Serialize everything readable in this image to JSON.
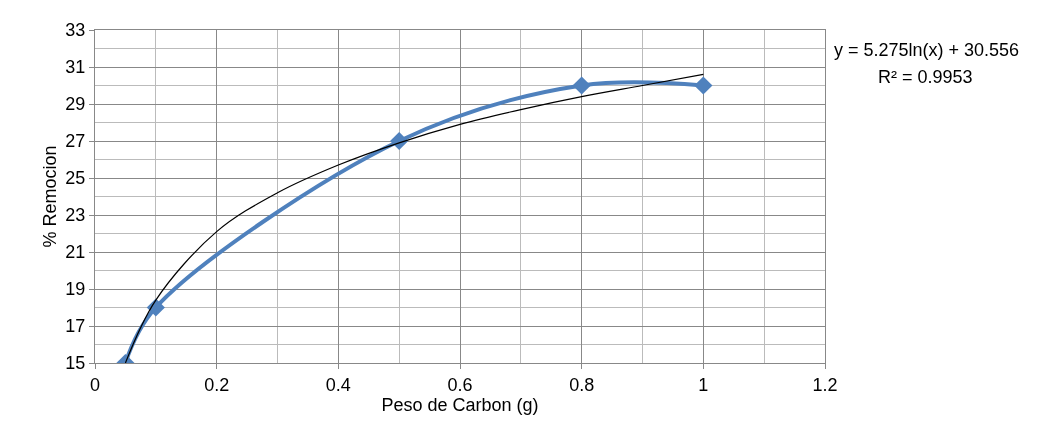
{
  "chart_data": {
    "type": "line",
    "xlabel": "Peso de Carbon (g)",
    "ylabel": "% Remocion",
    "x": [
      0.05,
      0.1,
      0.5,
      0.8,
      1
    ],
    "series": [
      {
        "color": "#4f81bd",
        "values": [
          15,
          18,
          27,
          30,
          30
        ],
        "marker": "diamond"
      },
      {
        "type": "line",
        "color": "#000000",
        "marker": "none",
        "x": [
          0.05,
          0.1,
          0.2,
          0.3,
          0.4,
          0.5,
          0.6,
          0.7,
          0.8,
          0.9,
          1.0
        ],
        "values": [
          15.0,
          18.4,
          22.1,
          24.2,
          25.7,
          26.9,
          27.9,
          28.7,
          29.4,
          30.0,
          30.6
        ]
      }
    ],
    "xlim": [
      0,
      1.2
    ],
    "xticks": [
      0,
      0.2,
      0.4,
      0.6,
      0.8,
      1,
      1.2
    ],
    "ylim": [
      15,
      33
    ],
    "yticks": [
      15,
      17,
      19,
      21,
      23,
      25,
      27,
      29,
      31,
      33
    ],
    "grid": true,
    "annotations": [
      "y = 5.275ln(x) + 30.556",
      "R² = 0.9953"
    ]
  }
}
